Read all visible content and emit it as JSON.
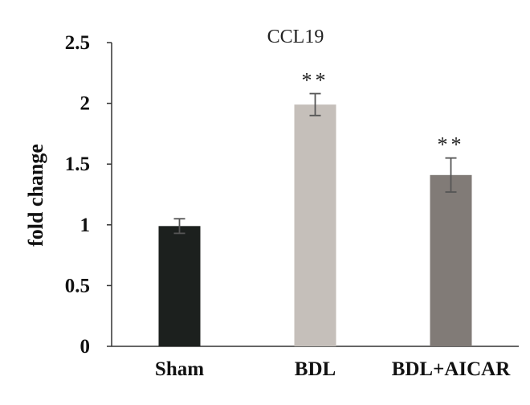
{
  "chart_data": {
    "type": "bar",
    "title": "CCL19",
    "xlabel": "",
    "ylabel": "fold change",
    "categories": [
      "Sham",
      "BDL",
      "BDL+AICAR"
    ],
    "values": [
      0.99,
      1.99,
      1.41
    ],
    "errors": [
      0.06,
      0.09,
      0.14
    ],
    "significance": [
      "",
      "**",
      "**"
    ],
    "colors": [
      "#1c201e",
      "#c5bfba",
      "#817b77"
    ],
    "ylim": [
      0,
      2.5
    ],
    "yticks": [
      0,
      0.5,
      1,
      1.5,
      2,
      2.5
    ],
    "ytick_labels": [
      "0",
      "0.5",
      "1",
      "1.5",
      "2",
      "2.5"
    ],
    "grid": false,
    "legend": "none"
  }
}
